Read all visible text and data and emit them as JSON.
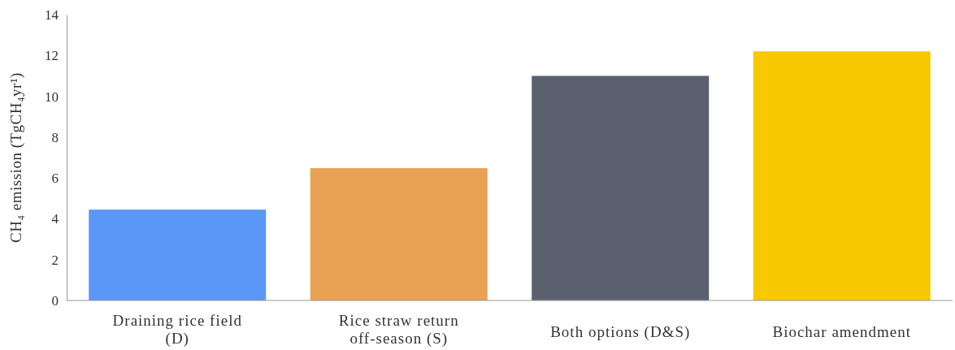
{
  "chart_data": {
    "type": "bar",
    "ylabel": "CH₄ emission (TgCH₄yr¹)",
    "categories": [
      "Draining rice field\n(D)",
      "Rice straw return\noff-season (S)",
      "Both options (D&S)",
      "Biochar amendment"
    ],
    "values": [
      4.45,
      6.48,
      11.0,
      12.2
    ],
    "colors": [
      "#5a97f7",
      "#e9a254",
      "#5a606e",
      "#f8c800"
    ],
    "ylim": [
      0,
      14
    ],
    "yticks": [
      0,
      2,
      4,
      6,
      8,
      10,
      12,
      14
    ],
    "grid": false
  }
}
